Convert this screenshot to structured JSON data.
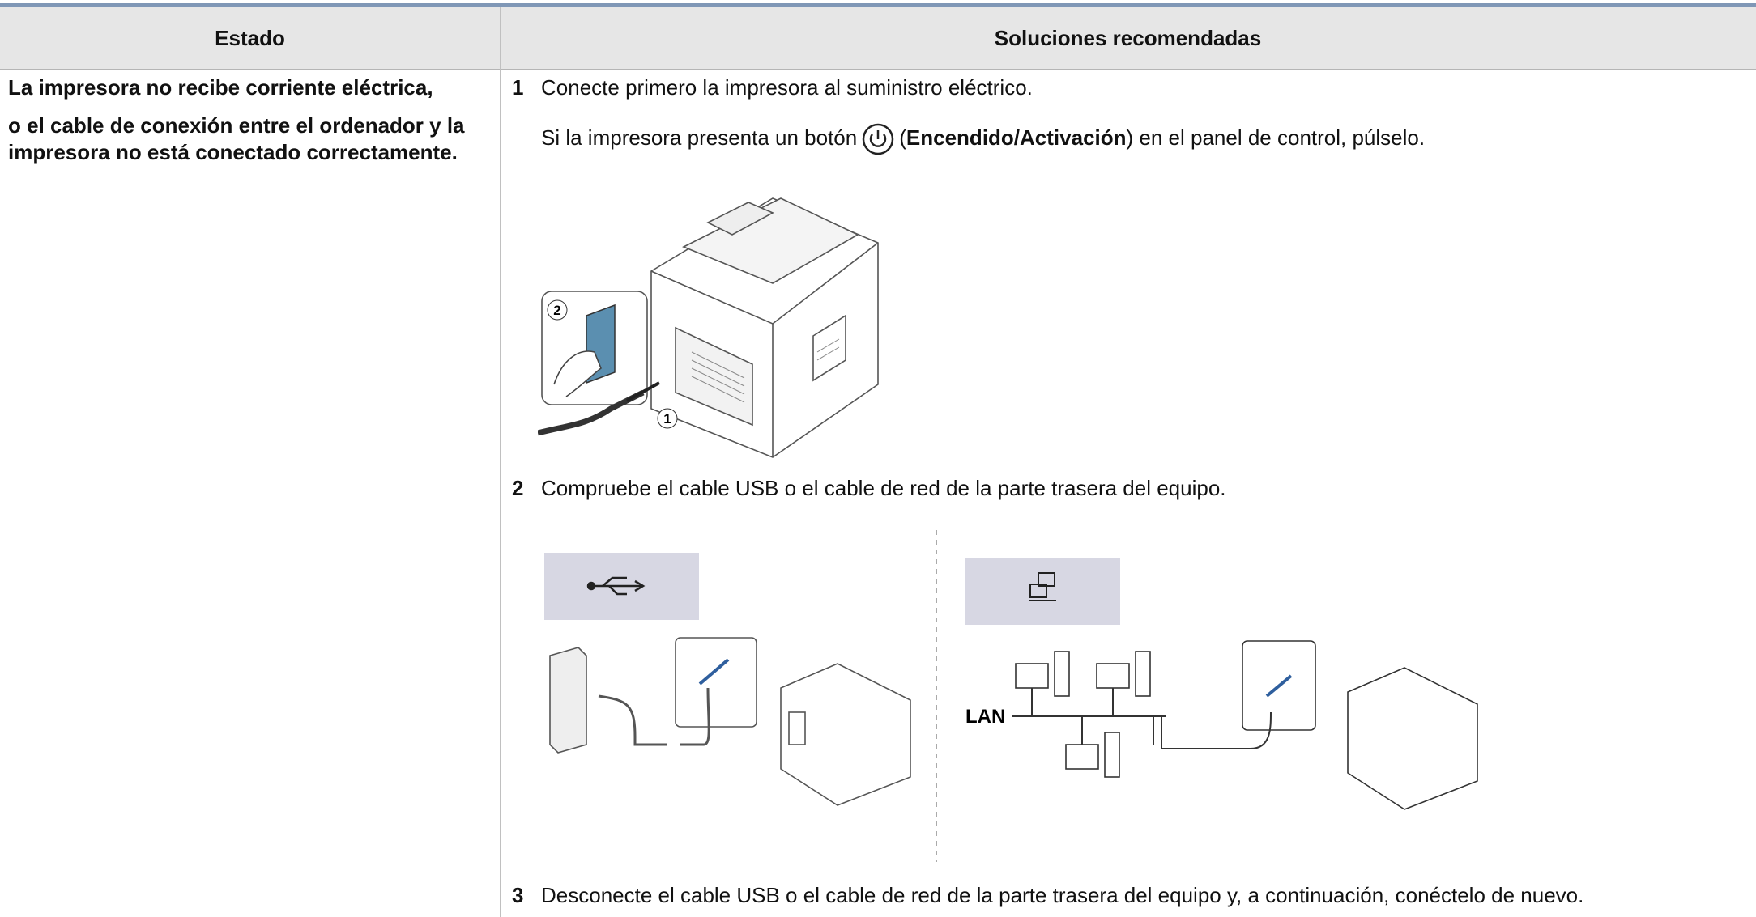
{
  "table": {
    "headers": [
      "Estado",
      "Soluciones recomendadas"
    ],
    "state": [
      "La impresora no recibe corriente eléctrica,",
      "o el cable de conexión entre el ordenador y la impresora no está conectado correctamente."
    ],
    "steps": [
      {
        "number": "1",
        "text": "Conecte primero la impresora al suministro eléctrico."
      },
      {
        "number": "2",
        "text": "Compruebe el cable USB o el cable de red de la parte trasera del equipo."
      },
      {
        "number": "3",
        "text": "Desconecte el cable USB o el cable de red de la parte trasera del equipo y, a continuación, conéctelo de nuevo."
      }
    ],
    "note": {
      "before": "Si la impresora presenta un botón",
      "open": "(",
      "bold": "Encendido/Activación",
      "after": ") en el panel de control, púlselo."
    },
    "illustrations": {
      "callouts": [
        "2",
        "1"
      ],
      "lan_label": "LAN"
    }
  }
}
